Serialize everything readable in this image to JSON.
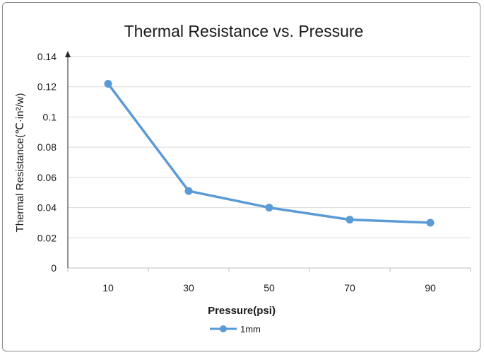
{
  "chart_data": {
    "type": "line",
    "title": "Thermal Resistance vs. Pressure",
    "xlabel": "Pressure(psi)",
    "ylabel": "Thermal Resistance(℃·in²/w)",
    "categories": [
      "10",
      "30",
      "50",
      "70",
      "90"
    ],
    "series": [
      {
        "name": "1mm",
        "values": [
          0.122,
          0.051,
          0.04,
          0.032,
          0.03
        ],
        "color": "#5b9bd5"
      }
    ],
    "ylim": [
      0,
      0.14
    ],
    "yticks": [
      "0",
      "0.02",
      "0.04",
      "0.06",
      "0.08",
      "0.1",
      "0.12",
      "0.14"
    ],
    "grid": true,
    "legend": "bottom"
  }
}
